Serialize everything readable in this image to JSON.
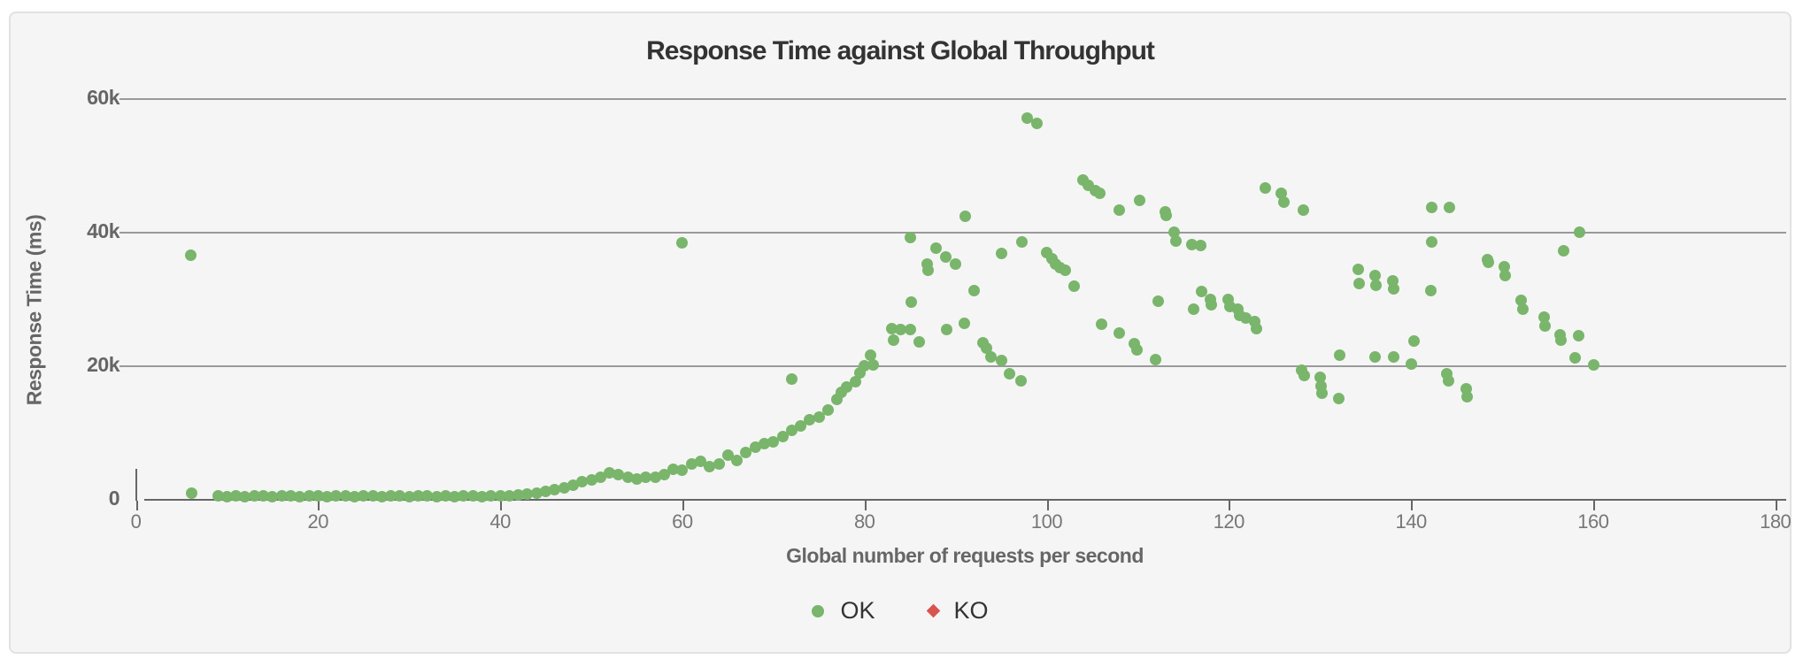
{
  "title": "Response Time against Global Throughput",
  "y_axis": {
    "title": "Response Time (ms)",
    "tick_labels": [
      "0",
      "20k",
      "40k",
      "60k"
    ],
    "tick_values": [
      0,
      20000,
      40000,
      60000
    ]
  },
  "x_axis": {
    "title": "Global number of requests per second",
    "tick_labels": [
      "0",
      "20",
      "40",
      "60",
      "80",
      "100",
      "120",
      "140",
      "160",
      "180"
    ],
    "tick_values": [
      0,
      20,
      40,
      60,
      80,
      100,
      120,
      140,
      160,
      180
    ]
  },
  "legend": [
    {
      "label": "OK",
      "color": "#79b56b",
      "shape": "circle"
    },
    {
      "label": "KO",
      "color": "#d9534f",
      "shape": "diamond"
    }
  ],
  "colors": {
    "ok": "#79b56b",
    "ko": "#d9534f",
    "grid": "#9a9a9a",
    "axis": "#666666",
    "panel_background": "#f5f5f6",
    "panel_border": "#e2e2e2",
    "title_text": "#333333",
    "label_text": "#666666"
  },
  "chart_data": {
    "type": "scatter",
    "title": "Response Time against Global Throughput",
    "xlabel": "Global number of requests per second",
    "ylabel": "Response Time (ms)",
    "xlim": [
      0,
      180
    ],
    "ylim": [
      0,
      64000
    ],
    "grid": "horizontal only",
    "gridlines_y": [
      20000,
      40000,
      60000
    ],
    "legend_position": "bottom center",
    "series": [
      {
        "name": "OK",
        "color": "#79b56b",
        "marker": "circle",
        "points": [
          [
            6,
            36500
          ],
          [
            6.1,
            900
          ],
          [
            9,
            400
          ],
          [
            10,
            350
          ],
          [
            11,
            420
          ],
          [
            12,
            380
          ],
          [
            13,
            400
          ],
          [
            14,
            420
          ],
          [
            15,
            390
          ],
          [
            16,
            410
          ],
          [
            17,
            400
          ],
          [
            18,
            380
          ],
          [
            19,
            420
          ],
          [
            20,
            400
          ],
          [
            21,
            390
          ],
          [
            22,
            410
          ],
          [
            23,
            400
          ],
          [
            24,
            380
          ],
          [
            25,
            420
          ],
          [
            26,
            400
          ],
          [
            27,
            390
          ],
          [
            28,
            410
          ],
          [
            29,
            400
          ],
          [
            30,
            380
          ],
          [
            31,
            420
          ],
          [
            32,
            400
          ],
          [
            33,
            390
          ],
          [
            34,
            410
          ],
          [
            35,
            380
          ],
          [
            36,
            420
          ],
          [
            37,
            400
          ],
          [
            38,
            390
          ],
          [
            39,
            410
          ],
          [
            40,
            450
          ],
          [
            41,
            520
          ],
          [
            42,
            600
          ],
          [
            43,
            700
          ],
          [
            44,
            850
          ],
          [
            45,
            1150
          ],
          [
            46,
            1400
          ],
          [
            47,
            1700
          ],
          [
            48,
            2100
          ],
          [
            49,
            2600
          ],
          [
            50,
            2900
          ],
          [
            51,
            3300
          ],
          [
            52,
            3850
          ],
          [
            53,
            3600
          ],
          [
            54,
            3200
          ],
          [
            55,
            2950
          ],
          [
            56,
            3300
          ],
          [
            57,
            3200
          ],
          [
            58,
            3600
          ],
          [
            59,
            4500
          ],
          [
            60,
            4250
          ],
          [
            60,
            38400
          ],
          [
            61,
            5200
          ],
          [
            62,
            5600
          ],
          [
            63,
            4900
          ],
          [
            64,
            5200
          ],
          [
            65,
            6500
          ],
          [
            66,
            5800
          ],
          [
            67,
            6900
          ],
          [
            68,
            7800
          ],
          [
            69,
            8300
          ],
          [
            70,
            8600
          ],
          [
            71,
            9300
          ],
          [
            72,
            10200
          ],
          [
            72,
            17900
          ],
          [
            73,
            10900
          ],
          [
            74,
            11800
          ],
          [
            75,
            12300
          ],
          [
            76,
            13300
          ],
          [
            77,
            14900
          ],
          [
            77.5,
            16000
          ],
          [
            78,
            16700
          ],
          [
            79,
            17500
          ],
          [
            79.5,
            18900
          ],
          [
            80,
            19900
          ],
          [
            80.7,
            21500
          ],
          [
            81,
            20100
          ],
          [
            83,
            25500
          ],
          [
            83.2,
            23800
          ],
          [
            84,
            25400
          ],
          [
            85,
            25400
          ],
          [
            86,
            23500
          ],
          [
            85,
            39100
          ],
          [
            85.1,
            29500
          ],
          [
            86.9,
            35200
          ],
          [
            87,
            34200
          ],
          [
            87.9,
            37600
          ],
          [
            88.9,
            36200
          ],
          [
            89,
            25300
          ],
          [
            90,
            35100
          ],
          [
            91,
            26300
          ],
          [
            91.1,
            42300
          ],
          [
            92,
            31200
          ],
          [
            93,
            23400
          ],
          [
            93.4,
            22600
          ],
          [
            93.9,
            21300
          ],
          [
            95,
            20700
          ],
          [
            95.9,
            18700
          ],
          [
            97.2,
            17700
          ],
          [
            95,
            36800
          ],
          [
            97.3,
            38500
          ],
          [
            97.9,
            57000
          ],
          [
            98.9,
            56200
          ],
          [
            100,
            36900
          ],
          [
            100.6,
            35900
          ],
          [
            101,
            35100
          ],
          [
            101.5,
            34600
          ],
          [
            102,
            34300
          ],
          [
            103,
            31900
          ],
          [
            104,
            47800
          ],
          [
            104.6,
            47000
          ],
          [
            105.3,
            46100
          ],
          [
            105.8,
            45800
          ],
          [
            106,
            26100
          ],
          [
            108,
            43300
          ],
          [
            108,
            24800
          ],
          [
            109.6,
            23300
          ],
          [
            109.9,
            22300
          ],
          [
            110.2,
            44700
          ],
          [
            112,
            20900
          ],
          [
            112.2,
            29600
          ],
          [
            113,
            43000
          ],
          [
            113.1,
            42400
          ],
          [
            114,
            39900
          ],
          [
            114.2,
            38600
          ],
          [
            115.9,
            38100
          ],
          [
            116.1,
            28400
          ],
          [
            116.9,
            38000
          ],
          [
            117,
            31100
          ],
          [
            118,
            29900
          ],
          [
            118.1,
            29100
          ],
          [
            119.9,
            29900
          ],
          [
            120.1,
            28800
          ],
          [
            121,
            28400
          ],
          [
            121.2,
            27500
          ],
          [
            121.9,
            27100
          ],
          [
            122.8,
            26500
          ],
          [
            123,
            25500
          ],
          [
            124,
            46600
          ],
          [
            125.8,
            45700
          ],
          [
            126,
            44400
          ],
          [
            128.2,
            43200
          ],
          [
            128,
            19300
          ],
          [
            128.3,
            18500
          ],
          [
            130,
            18200
          ],
          [
            130.1,
            16900
          ],
          [
            130.2,
            15800
          ],
          [
            132.1,
            15000
          ],
          [
            132.2,
            21500
          ],
          [
            134.2,
            34400
          ],
          [
            134.3,
            32200
          ],
          [
            136.1,
            33500
          ],
          [
            136.2,
            32000
          ],
          [
            136.1,
            21300
          ],
          [
            138,
            32600
          ],
          [
            138.1,
            31500
          ],
          [
            138.1,
            21300
          ],
          [
            140,
            20200
          ],
          [
            140.3,
            23700
          ],
          [
            142.2,
            31200
          ],
          [
            142.3,
            43700
          ],
          [
            142.3,
            38500
          ],
          [
            143.9,
            18700
          ],
          [
            144.1,
            17700
          ],
          [
            144.2,
            43600
          ],
          [
            146.1,
            16500
          ],
          [
            146.2,
            15300
          ],
          [
            148.4,
            35800
          ],
          [
            148.5,
            35400
          ],
          [
            150.2,
            34800
          ],
          [
            150.3,
            33500
          ],
          [
            152.1,
            29800
          ],
          [
            152.3,
            28400
          ],
          [
            154.6,
            27200
          ],
          [
            154.7,
            25900
          ],
          [
            156.4,
            24600
          ],
          [
            156.5,
            23800
          ],
          [
            156.8,
            37100
          ],
          [
            158,
            21100
          ],
          [
            158.4,
            24500
          ],
          [
            158.5,
            40000
          ],
          [
            160.1,
            20100
          ]
        ]
      },
      {
        "name": "KO",
        "color": "#d9534f",
        "marker": "diamond",
        "points": []
      }
    ]
  }
}
